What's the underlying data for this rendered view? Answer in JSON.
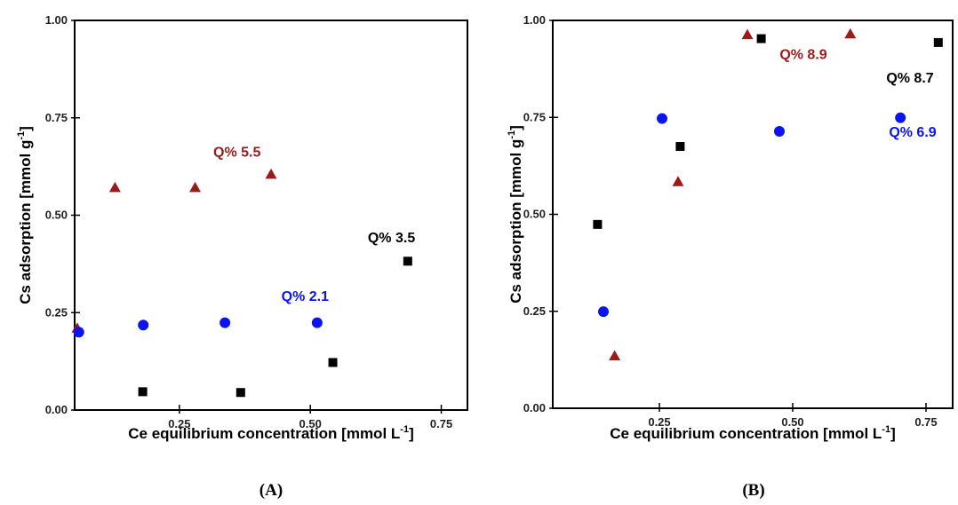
{
  "chart_data": [
    {
      "type": "scatter",
      "panel_label": "(A)",
      "xlabel": "Ce equilibrium concentration [mmol L",
      "xlabel_sup": "-1",
      "xlabel_end": "]",
      "ylabel": "Cs adsorption [mmol g",
      "ylabel_sup": "-1",
      "ylabel_end": "]",
      "xlim": [
        0.05,
        0.8
      ],
      "ylim": [
        0.0,
        1.0
      ],
      "xticks": [
        "0.25",
        "0.50",
        "0.75"
      ],
      "xtick_values": [
        0.25,
        0.5,
        0.75
      ],
      "yticks": [
        "0.00",
        "0.25",
        "0.50",
        "0.75",
        "1.00"
      ],
      "ytick_values": [
        0.0,
        0.25,
        0.5,
        0.75,
        1.0
      ],
      "grid": false,
      "series": [
        {
          "marker": "square",
          "color": "#000000",
          "x": [
            0.18,
            0.367,
            0.543,
            0.686
          ],
          "y": [
            0.047,
            0.045,
            0.122,
            0.382
          ]
        },
        {
          "marker": "triangle",
          "color": "#9b1b1b",
          "x": [
            0.055,
            0.127,
            0.28,
            0.425
          ],
          "y": [
            0.21,
            0.571,
            0.571,
            0.605
          ]
        },
        {
          "marker": "circle",
          "color": "#0a14f0",
          "x": [
            0.058,
            0.181,
            0.337,
            0.513
          ],
          "y": [
            0.2,
            0.218,
            0.224,
            0.224
          ]
        }
      ],
      "annotations": [
        {
          "text": "Q% 5.5",
          "color": "#9b1b1b",
          "x": 0.36,
          "y": 0.65
        },
        {
          "text": "Q% 3.5",
          "color": "#000000",
          "x": 0.655,
          "y": 0.43
        },
        {
          "text": "Q% 2.1",
          "color": "#0a14f0",
          "x": 0.49,
          "y": 0.28
        }
      ]
    },
    {
      "type": "scatter",
      "panel_label": "(B)",
      "xlabel": "Ce equilibrium concentration [mmol L",
      "xlabel_sup": "-1",
      "xlabel_end": "]",
      "ylabel": "Cs adsorption [mmol g",
      "ylabel_sup": "-1",
      "ylabel_end": "]",
      "xlim": [
        0.05,
        0.8
      ],
      "ylim": [
        0.0,
        1.0
      ],
      "xticks": [
        "0.25",
        "0.50",
        "0.75"
      ],
      "xtick_values": [
        0.25,
        0.5,
        0.75
      ],
      "yticks": [
        "0.00",
        "0.25",
        "0.50",
        "0.75",
        "1.00"
      ],
      "ytick_values": [
        0.0,
        0.25,
        0.5,
        0.75,
        1.0
      ],
      "grid": false,
      "series": [
        {
          "marker": "square",
          "color": "#000000",
          "x": [
            0.134,
            0.289,
            0.441,
            0.773
          ],
          "y": [
            0.474,
            0.675,
            0.953,
            0.943
          ]
        },
        {
          "marker": "triangle",
          "color": "#9b1b1b",
          "x": [
            0.166,
            0.285,
            0.415,
            0.608
          ],
          "y": [
            0.135,
            0.584,
            0.963,
            0.965
          ]
        },
        {
          "marker": "circle",
          "color": "#0a14f0",
          "x": [
            0.145,
            0.255,
            0.475,
            0.702
          ],
          "y": [
            0.249,
            0.747,
            0.714,
            0.749
          ]
        }
      ],
      "annotations": [
        {
          "text": "Q% 8.9",
          "color": "#9b1b1b",
          "x": 0.52,
          "y": 0.9
        },
        {
          "text": "Q% 8.7",
          "color": "#000000",
          "x": 0.72,
          "y": 0.84
        },
        {
          "text": "Q% 6.9",
          "color": "#0a14f0",
          "x": 0.725,
          "y": 0.7
        }
      ]
    }
  ]
}
